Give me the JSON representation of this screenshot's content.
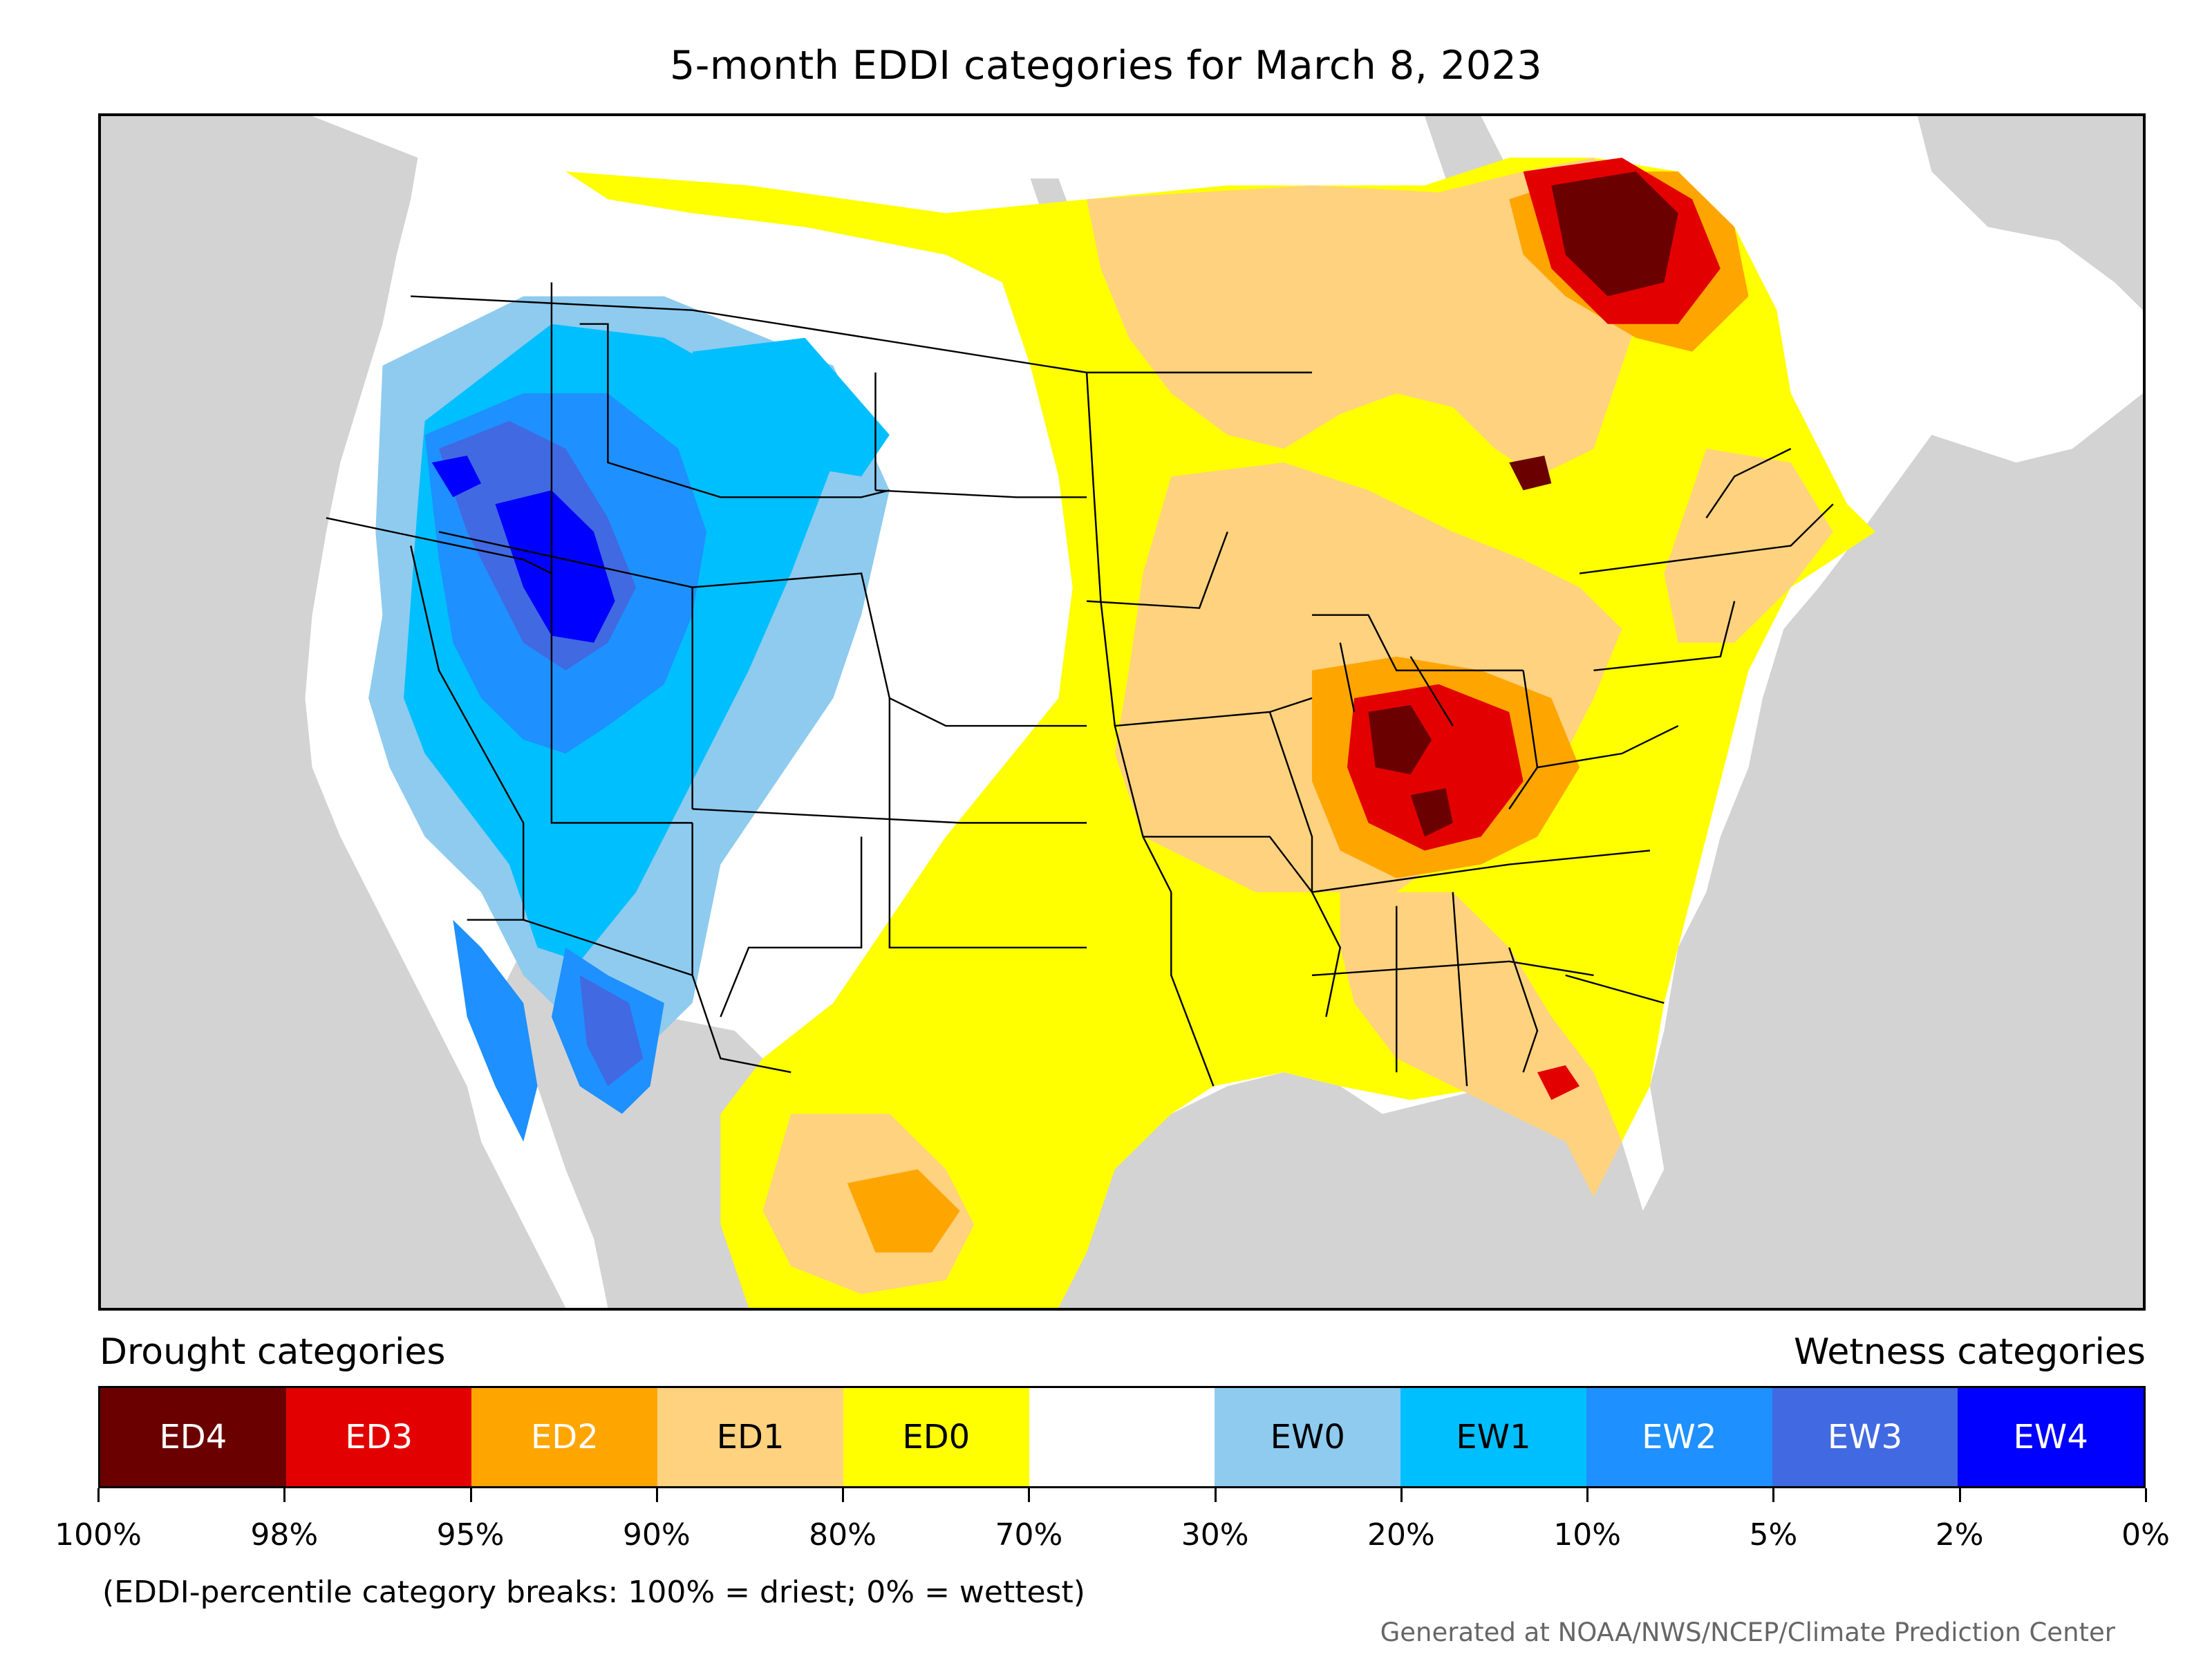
{
  "title": "5-month EDDI categories for March 8, 2023",
  "legend": {
    "left_heading": "Drought categories",
    "right_heading": "Wetness categories",
    "categories": [
      {
        "label": "ED4",
        "color": "#6b0000",
        "text_color": "#ffffff"
      },
      {
        "label": "ED3",
        "color": "#e30000",
        "text_color": "#ffffff"
      },
      {
        "label": "ED2",
        "color": "#ffa500",
        "text_color": "#ffffff"
      },
      {
        "label": "ED1",
        "color": "#ffd27f",
        "text_color": "#000000"
      },
      {
        "label": "ED0",
        "color": "#ffff00",
        "text_color": "#000000"
      },
      {
        "label": "",
        "color": "#ffffff",
        "text_color": "#000000"
      },
      {
        "label": "EW0",
        "color": "#8ecbef",
        "text_color": "#000000"
      },
      {
        "label": "EW1",
        "color": "#00bfff",
        "text_color": "#000000"
      },
      {
        "label": "EW2",
        "color": "#1e90ff",
        "text_color": "#ffffff"
      },
      {
        "label": "EW3",
        "color": "#4169e1",
        "text_color": "#ffffff"
      },
      {
        "label": "EW4",
        "color": "#0000ff",
        "text_color": "#ffffff"
      }
    ],
    "tick_labels": [
      "100%",
      "98%",
      "95%",
      "90%",
      "80%",
      "70%",
      "30%",
      "20%",
      "10%",
      "5%",
      "2%",
      "0%"
    ]
  },
  "footnote": "(EDDI-percentile category breaks: 100% = driest; 0% = wettest)",
  "credit": "Generated at NOAA/NWS/NCEP/Climate Prediction Center",
  "map_colors": {
    "land_background": "#ffffff",
    "ocean_and_outside": "#d3d3d3",
    "borders": "#000000"
  }
}
